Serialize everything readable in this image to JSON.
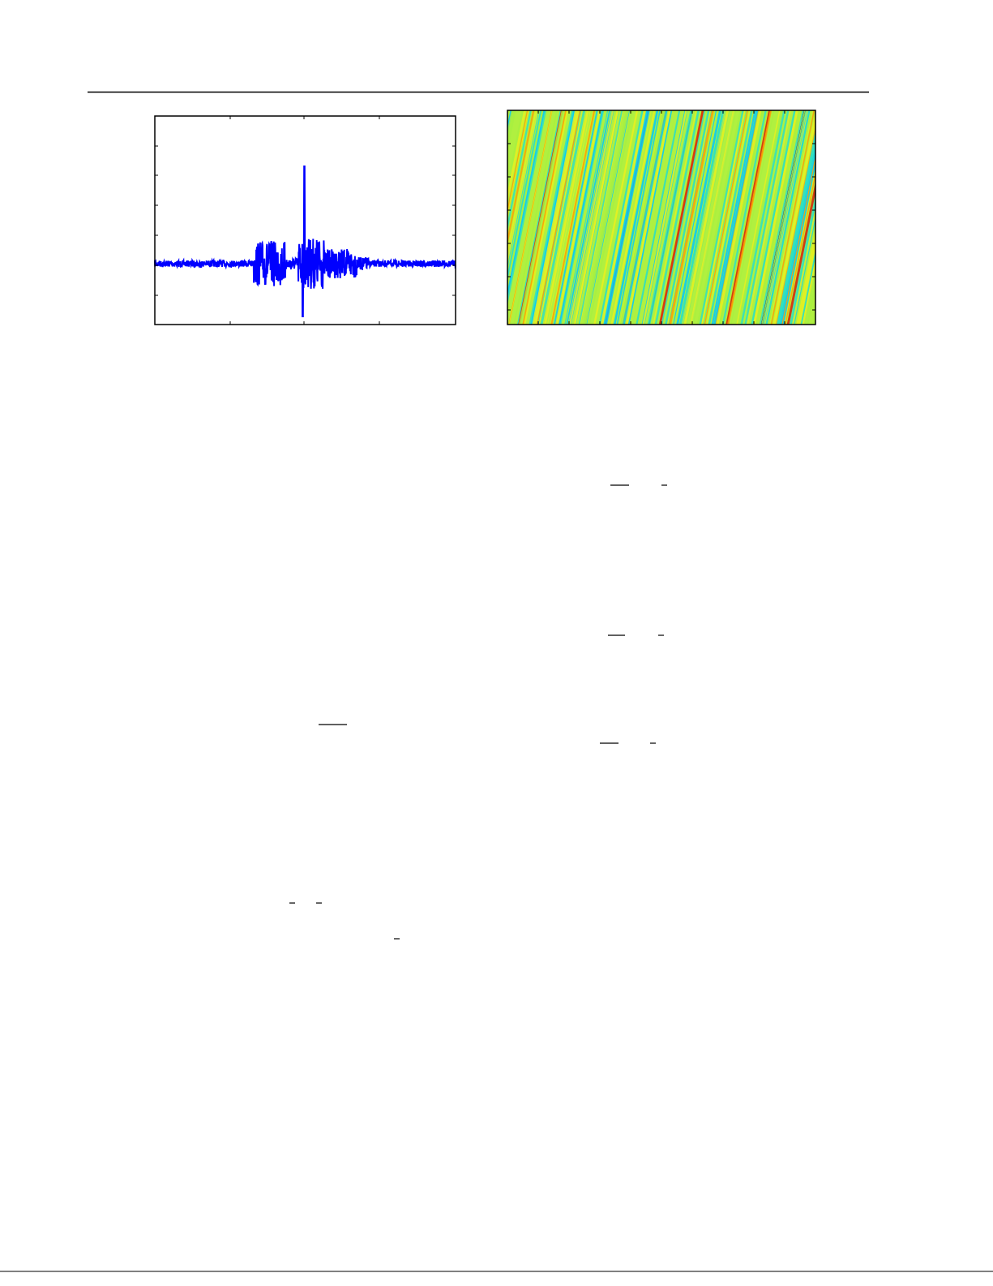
{
  "page": {
    "background": "#ffffff",
    "rule_color": "#000000"
  },
  "chart_data": [
    {
      "type": "line",
      "title": "",
      "xlabel": "",
      "ylabel": "",
      "series_color": "#0000ff",
      "grid": false,
      "x_tick_count": 5,
      "y_tick_count": 8,
      "description_shape": "noise baseline with a burst of oscillations in the center and one tall spike"
    },
    {
      "type": "heatmap",
      "title": "",
      "xlabel": "",
      "ylabel": "",
      "colormap": [
        "#00c8ff",
        "#30e0c0",
        "#a8f040",
        "#e8f020",
        "#ffa000",
        "#e02000",
        "#000080"
      ],
      "grid": false,
      "x_tick_count": 11,
      "y_tick_count": 7
    }
  ]
}
